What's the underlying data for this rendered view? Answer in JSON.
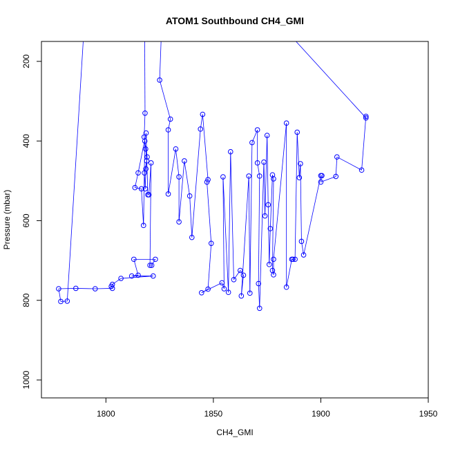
{
  "chart_data": {
    "type": "scatter",
    "title": "ATOM1 Southbound CH4_GMI",
    "xlabel": "CH4_GMI",
    "ylabel": "Pressure (mbar)",
    "xlim": [
      1770,
      1950
    ],
    "ylim": [
      1045,
      150
    ],
    "y_reversed": true,
    "x_ticks": [
      "1800",
      "1850",
      "1900",
      "1950"
    ],
    "y_ticks": [
      "200",
      "400",
      "600",
      "800",
      "1000"
    ],
    "grid": false,
    "colors": {
      "series": "#0000ff",
      "axes": "#000000"
    },
    "marker": "open-circle",
    "series": [
      {
        "points": [
          [
            1818.0,
            100
          ],
          [
            1818.2,
            330
          ],
          [
            1817.8,
            390
          ],
          [
            1818.5,
            420
          ],
          [
            1819.0,
            450
          ],
          [
            1817.9,
            480
          ],
          [
            1818.3,
            520
          ],
          [
            1818.6,
            470
          ],
          [
            1819.2,
            440
          ],
          [
            1818.1,
            400
          ],
          [
            1817.5,
            612
          ],
          [
            1816.5,
            520
          ],
          [
            1813.5,
            517
          ],
          [
            1815.0,
            480
          ],
          [
            1818.7,
            380
          ],
          [
            1819.5,
            535
          ],
          [
            1820.0,
            535
          ],
          [
            1821.0,
            455
          ],
          [
            1820.5,
            712
          ],
          [
            1821.3,
            712
          ],
          [
            1823.0,
            697
          ],
          [
            1813.0,
            697
          ],
          [
            1815.0,
            737
          ],
          [
            1812.0,
            739
          ],
          [
            1822.0,
            739
          ],
          [
            1807.0,
            745
          ],
          [
            1803.0,
            760
          ],
          [
            1802.5,
            765
          ],
          [
            1803.0,
            770
          ],
          [
            1795.0,
            771
          ],
          [
            1786.0,
            770
          ],
          [
            1778.0,
            771
          ],
          [
            1779.0,
            803
          ],
          [
            1782.0,
            802
          ],
          [
            1790.0,
            100
          ],
          [
            1826.0,
            100
          ],
          [
            1825.0,
            247
          ],
          [
            1830.0,
            345
          ],
          [
            1829.0,
            372
          ],
          [
            1829.0,
            533
          ],
          [
            1832.5,
            420
          ],
          [
            1834.0,
            490
          ],
          [
            1834.0,
            603
          ],
          [
            1836.5,
            450
          ],
          [
            1839.0,
            538
          ],
          [
            1840.0,
            642
          ],
          [
            1844.0,
            370
          ],
          [
            1845.0,
            333
          ],
          [
            1847.5,
            497
          ],
          [
            1847.0,
            503
          ],
          [
            1849.0,
            657
          ],
          [
            1847.5,
            772
          ],
          [
            1844.5,
            781
          ],
          [
            1854.0,
            756
          ],
          [
            1855.0,
            771
          ],
          [
            1854.5,
            490
          ],
          [
            1857.0,
            780
          ],
          [
            1858.0,
            427
          ],
          [
            1859.5,
            748
          ],
          [
            1862.5,
            725
          ],
          [
            1864.0,
            737
          ],
          [
            1863.0,
            789
          ],
          [
            1866.5,
            488
          ],
          [
            1867.0,
            782
          ],
          [
            1868.0,
            404
          ],
          [
            1870.5,
            372
          ],
          [
            1870.5,
            455
          ],
          [
            1871.5,
            488
          ],
          [
            1871.0,
            758
          ],
          [
            1871.5,
            820
          ],
          [
            1873.5,
            453
          ],
          [
            1874.0,
            588
          ],
          [
            1875.0,
            386
          ],
          [
            1875.5,
            560
          ],
          [
            1876.0,
            710
          ],
          [
            1876.5,
            620
          ],
          [
            1877.5,
            485
          ],
          [
            1878.0,
            495
          ],
          [
            1877.5,
            725
          ],
          [
            1878.0,
            736
          ],
          [
            1878.0,
            697
          ],
          [
            1884.0,
            355
          ],
          [
            1884.0,
            767
          ],
          [
            1886.5,
            697
          ],
          [
            1887.0,
            697
          ],
          [
            1888.0,
            697
          ],
          [
            1889.0,
            378
          ],
          [
            1890.0,
            492
          ],
          [
            1890.5,
            457
          ],
          [
            1891.0,
            652
          ],
          [
            1892.0,
            686
          ],
          [
            1900.0,
            487
          ],
          [
            1900.5,
            487
          ],
          [
            1900.0,
            503
          ],
          [
            1907.0,
            489
          ],
          [
            1907.5,
            440
          ],
          [
            1919.0,
            473
          ],
          [
            1921.0,
            338
          ],
          [
            1921.0,
            342
          ],
          [
            1880.0,
            100
          ],
          [
            1895.0,
            100
          ],
          [
            1925.0,
            100
          ],
          [
            1935.0,
            100
          ],
          [
            1860.0,
            100
          ],
          [
            1835.0,
            100
          ]
        ]
      }
    ]
  }
}
